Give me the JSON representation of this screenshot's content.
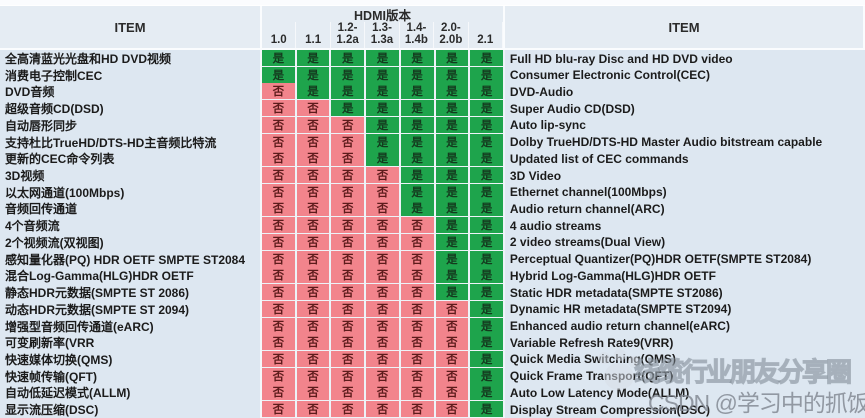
{
  "header": {
    "item_left": "ITEM",
    "item_right": "ITEM",
    "group_title": "HDMI版本",
    "columns": [
      "1.0",
      "1.1",
      "1.2-\n1.2a",
      "1.3-\n1.3a",
      "1.4-\n1.4b",
      "2.0-\n2.0b",
      "2.1"
    ]
  },
  "legend": {
    "yes": "是",
    "no": "否"
  },
  "colors": {
    "yes_bg": "#1ea44c",
    "no_bg": "#f2848c",
    "panel_bg": "#eaf0f6"
  },
  "rows": [
    {
      "zh": "全高清蓝光光盘和HD DVD视频",
      "en": "Full HD blu-ray Disc and HD DVD video",
      "values": [
        "是",
        "是",
        "是",
        "是",
        "是",
        "是",
        "是"
      ]
    },
    {
      "zh": "消费电子控制CEC",
      "en": "Consumer Electronic Control(CEC)",
      "values": [
        "是",
        "是",
        "是",
        "是",
        "是",
        "是",
        "是"
      ]
    },
    {
      "zh": "DVD音频",
      "en": "DVD-Audio",
      "values": [
        "否",
        "是",
        "是",
        "是",
        "是",
        "是",
        "是"
      ]
    },
    {
      "zh": "超级音频CD(DSD)",
      "en": "Super Audio CD(DSD)",
      "values": [
        "否",
        "否",
        "是",
        "是",
        "是",
        "是",
        "是"
      ]
    },
    {
      "zh": "自动唇形同步",
      "en": "Auto lip-sync",
      "values": [
        "否",
        "否",
        "否",
        "是",
        "是",
        "是",
        "是"
      ]
    },
    {
      "zh": "支持杜比TrueHD/DTS-HD主音频比特流",
      "en": "Dolby TrueHD/DTS-HD Master Audio bitstream capable",
      "values": [
        "否",
        "否",
        "否",
        "是",
        "是",
        "是",
        "是"
      ]
    },
    {
      "zh": "更新的CEC命令列表",
      "en": "Updated list of CEC commands",
      "values": [
        "否",
        "否",
        "否",
        "是",
        "是",
        "是",
        "是"
      ]
    },
    {
      "zh": "3D视频",
      "en": "3D Video",
      "values": [
        "否",
        "否",
        "否",
        "否",
        "是",
        "是",
        "是"
      ]
    },
    {
      "zh": "以太网通道(100Mbps)",
      "en": "Ethernet channel(100Mbps)",
      "values": [
        "否",
        "否",
        "否",
        "否",
        "是",
        "是",
        "是"
      ]
    },
    {
      "zh": "音频回传通道",
      "en": "Audio return channel(ARC)",
      "values": [
        "否",
        "否",
        "否",
        "否",
        "是",
        "是",
        "是"
      ]
    },
    {
      "zh": "4个音频流",
      "en": "4 audio streams",
      "values": [
        "否",
        "否",
        "否",
        "否",
        "否",
        "是",
        "是"
      ]
    },
    {
      "zh": "2个视频流(双视图)",
      "en": "2 video streams(Dual View)",
      "values": [
        "否",
        "否",
        "否",
        "否",
        "否",
        "是",
        "是"
      ]
    },
    {
      "zh": "感知量化器(PQ) HDR OETF SMPTE ST2084",
      "en": "Perceptual Quantizer(PQ)HDR OETF(SMPTE ST2084)",
      "values": [
        "否",
        "否",
        "否",
        "否",
        "否",
        "是",
        "是"
      ]
    },
    {
      "zh": "混合Log-Gamma(HLG)HDR OETF",
      "en": "Hybrid Log-Gamma(HLG)HDR OETF",
      "values": [
        "否",
        "否",
        "否",
        "否",
        "否",
        "是",
        "是"
      ]
    },
    {
      "zh": "静态HDR元数据(SMPTE ST 2086)",
      "en": "Static HDR metadata(SMPTE ST2086)",
      "values": [
        "否",
        "否",
        "否",
        "否",
        "否",
        "是",
        "是"
      ]
    },
    {
      "zh": "动态HDR元数据(SMPTE ST 2094)",
      "en": "Dynamic HR metadata(SMPTE ST2094)",
      "values": [
        "否",
        "否",
        "否",
        "否",
        "否",
        "否",
        "是"
      ]
    },
    {
      "zh": "增强型音频回传通道(eARC)",
      "en": "Enhanced audio return channel(eARC)",
      "values": [
        "否",
        "否",
        "否",
        "否",
        "否",
        "否",
        "是"
      ]
    },
    {
      "zh": "可变刷新率(VRR",
      "en": "Variable Refresh Rate9(VRR)",
      "values": [
        "否",
        "否",
        "否",
        "否",
        "否",
        "否",
        "是"
      ]
    },
    {
      "zh": "快速媒体切换(QMS)",
      "en": "Quick Media Switching(QMS)",
      "values": [
        "否",
        "否",
        "否",
        "否",
        "否",
        "否",
        "是"
      ]
    },
    {
      "zh": "快速帧传输(QFT)",
      "en": "Quick Frame Transport(QFT)",
      "values": [
        "否",
        "否",
        "否",
        "否",
        "否",
        "否",
        "是"
      ]
    },
    {
      "zh": "自动低延迟模式(ALLM)",
      "en": "Auto Low Latency Mode(ALLM)",
      "values": [
        "否",
        "否",
        "否",
        "否",
        "否",
        "否",
        "是"
      ]
    },
    {
      "zh": "显示流压缩(DSC)",
      "en": "Display Stream Compression(DSC)",
      "values": [
        "否",
        "否",
        "否",
        "否",
        "否",
        "否",
        "是"
      ]
    }
  ],
  "watermark": {
    "line1": "线缆行业朋友分享圈",
    "line2": "CSDN @学习中的抓饭"
  }
}
